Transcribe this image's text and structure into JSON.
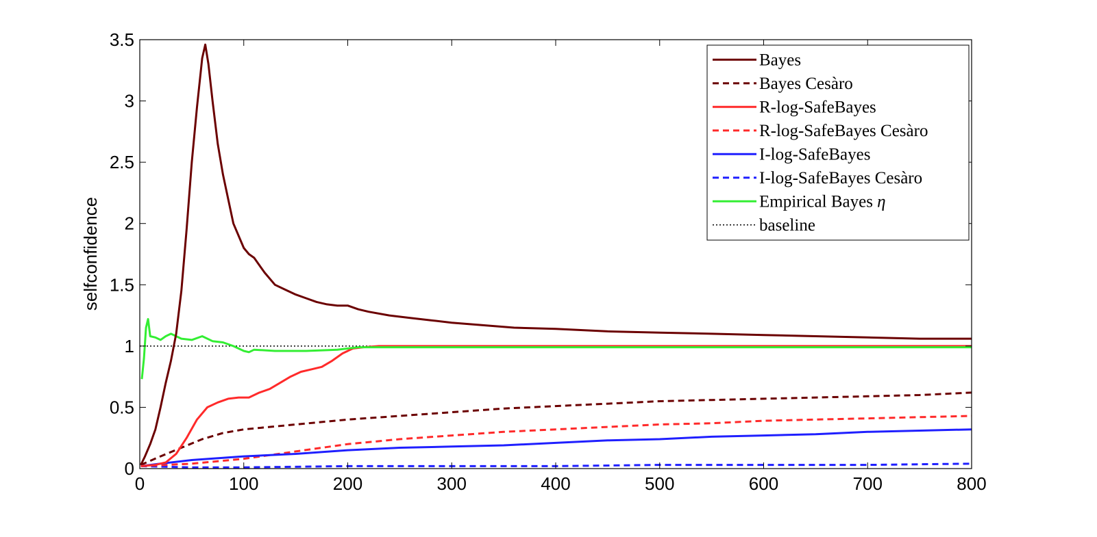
{
  "chart_data": {
    "type": "line",
    "title": "",
    "xlabel": "",
    "ylabel": "selfconfidence",
    "xlim": [
      0,
      800
    ],
    "ylim": [
      0,
      3.5
    ],
    "xticks": [
      "0",
      "100",
      "200",
      "300",
      "400",
      "500",
      "600",
      "700",
      "800"
    ],
    "yticks": [
      "0",
      "0.5",
      "1",
      "1.5",
      "2",
      "2.5",
      "3",
      "3.5"
    ],
    "grid": false,
    "legend_position": "top-right",
    "series": [
      {
        "name": "Bayes",
        "color": "#6b0000",
        "dash": "solid",
        "points": [
          [
            1,
            0.03
          ],
          [
            5,
            0.1
          ],
          [
            10,
            0.2
          ],
          [
            15,
            0.32
          ],
          [
            20,
            0.5
          ],
          [
            25,
            0.7
          ],
          [
            30,
            0.88
          ],
          [
            35,
            1.1
          ],
          [
            40,
            1.45
          ],
          [
            45,
            1.95
          ],
          [
            50,
            2.5
          ],
          [
            55,
            2.95
          ],
          [
            60,
            3.35
          ],
          [
            63,
            3.46
          ],
          [
            66,
            3.3
          ],
          [
            70,
            3.0
          ],
          [
            75,
            2.65
          ],
          [
            80,
            2.4
          ],
          [
            85,
            2.2
          ],
          [
            90,
            2.0
          ],
          [
            100,
            1.8
          ],
          [
            105,
            1.75
          ],
          [
            110,
            1.72
          ],
          [
            120,
            1.6
          ],
          [
            130,
            1.5
          ],
          [
            140,
            1.46
          ],
          [
            150,
            1.42
          ],
          [
            160,
            1.39
          ],
          [
            170,
            1.36
          ],
          [
            180,
            1.34
          ],
          [
            190,
            1.33
          ],
          [
            200,
            1.33
          ],
          [
            210,
            1.3
          ],
          [
            220,
            1.28
          ],
          [
            240,
            1.25
          ],
          [
            260,
            1.23
          ],
          [
            280,
            1.21
          ],
          [
            300,
            1.19
          ],
          [
            330,
            1.17
          ],
          [
            360,
            1.15
          ],
          [
            400,
            1.14
          ],
          [
            450,
            1.12
          ],
          [
            500,
            1.11
          ],
          [
            550,
            1.1
          ],
          [
            600,
            1.09
          ],
          [
            650,
            1.08
          ],
          [
            700,
            1.07
          ],
          [
            750,
            1.06
          ],
          [
            800,
            1.06
          ]
        ]
      },
      {
        "name": "Bayes Cesàro",
        "color": "#6b0000",
        "dash": "dashed",
        "points": [
          [
            1,
            0.03
          ],
          [
            20,
            0.1
          ],
          [
            40,
            0.17
          ],
          [
            60,
            0.24
          ],
          [
            80,
            0.29
          ],
          [
            100,
            0.32
          ],
          [
            150,
            0.36
          ],
          [
            200,
            0.4
          ],
          [
            250,
            0.43
          ],
          [
            300,
            0.46
          ],
          [
            350,
            0.49
          ],
          [
            400,
            0.51
          ],
          [
            450,
            0.53
          ],
          [
            500,
            0.55
          ],
          [
            550,
            0.56
          ],
          [
            600,
            0.57
          ],
          [
            650,
            0.58
          ],
          [
            700,
            0.59
          ],
          [
            750,
            0.6
          ],
          [
            800,
            0.62
          ]
        ]
      },
      {
        "name": "R-log-SafeBayes",
        "color": "#ff2a2a",
        "dash": "solid",
        "points": [
          [
            1,
            0.02
          ],
          [
            15,
            0.03
          ],
          [
            25,
            0.05
          ],
          [
            35,
            0.12
          ],
          [
            45,
            0.25
          ],
          [
            55,
            0.4
          ],
          [
            65,
            0.5
          ],
          [
            75,
            0.54
          ],
          [
            85,
            0.57
          ],
          [
            95,
            0.58
          ],
          [
            105,
            0.58
          ],
          [
            115,
            0.62
          ],
          [
            125,
            0.65
          ],
          [
            135,
            0.7
          ],
          [
            145,
            0.75
          ],
          [
            155,
            0.79
          ],
          [
            165,
            0.81
          ],
          [
            175,
            0.83
          ],
          [
            185,
            0.88
          ],
          [
            195,
            0.94
          ],
          [
            205,
            0.98
          ],
          [
            215,
            0.99
          ],
          [
            230,
            1.0
          ],
          [
            260,
            1.0
          ],
          [
            300,
            1.0
          ],
          [
            400,
            1.0
          ],
          [
            500,
            1.0
          ],
          [
            600,
            1.0
          ],
          [
            700,
            1.0
          ],
          [
            800,
            1.0
          ]
        ]
      },
      {
        "name": "R-log-SafeBayes Cesàro",
        "color": "#ff2a2a",
        "dash": "dashed",
        "points": [
          [
            1,
            0.02
          ],
          [
            50,
            0.04
          ],
          [
            100,
            0.08
          ],
          [
            150,
            0.14
          ],
          [
            200,
            0.2
          ],
          [
            250,
            0.24
          ],
          [
            300,
            0.27
          ],
          [
            350,
            0.3
          ],
          [
            400,
            0.32
          ],
          [
            450,
            0.34
          ],
          [
            500,
            0.36
          ],
          [
            550,
            0.37
          ],
          [
            600,
            0.39
          ],
          [
            650,
            0.4
          ],
          [
            700,
            0.41
          ],
          [
            750,
            0.42
          ],
          [
            800,
            0.43
          ]
        ]
      },
      {
        "name": "I-log-SafeBayes",
        "color": "#1f1fff",
        "dash": "solid",
        "points": [
          [
            1,
            0.02
          ],
          [
            20,
            0.04
          ],
          [
            50,
            0.07
          ],
          [
            100,
            0.1
          ],
          [
            150,
            0.12
          ],
          [
            200,
            0.15
          ],
          [
            250,
            0.17
          ],
          [
            300,
            0.18
          ],
          [
            350,
            0.19
          ],
          [
            400,
            0.21
          ],
          [
            450,
            0.23
          ],
          [
            500,
            0.24
          ],
          [
            550,
            0.26
          ],
          [
            600,
            0.27
          ],
          [
            650,
            0.28
          ],
          [
            700,
            0.3
          ],
          [
            750,
            0.31
          ],
          [
            800,
            0.32
          ]
        ]
      },
      {
        "name": "I-log-SafeBayes Cesàro",
        "color": "#1f1fff",
        "dash": "dashed",
        "points": [
          [
            1,
            0.02
          ],
          [
            50,
            0.01
          ],
          [
            100,
            0.01
          ],
          [
            200,
            0.02
          ],
          [
            300,
            0.02
          ],
          [
            400,
            0.02
          ],
          [
            500,
            0.03
          ],
          [
            600,
            0.03
          ],
          [
            700,
            0.03
          ],
          [
            800,
            0.04
          ]
        ]
      },
      {
        "name": "Empirical Bayes η",
        "color": "#33ee33",
        "dash": "solid",
        "points": [
          [
            2,
            0.73
          ],
          [
            4,
            0.9
          ],
          [
            6,
            1.15
          ],
          [
            8,
            1.22
          ],
          [
            10,
            1.08
          ],
          [
            15,
            1.07
          ],
          [
            20,
            1.05
          ],
          [
            25,
            1.08
          ],
          [
            30,
            1.1
          ],
          [
            40,
            1.06
          ],
          [
            50,
            1.05
          ],
          [
            60,
            1.08
          ],
          [
            70,
            1.04
          ],
          [
            80,
            1.03
          ],
          [
            90,
            1.0
          ],
          [
            100,
            0.96
          ],
          [
            105,
            0.95
          ],
          [
            110,
            0.97
          ],
          [
            130,
            0.96
          ],
          [
            160,
            0.96
          ],
          [
            190,
            0.97
          ],
          [
            210,
            0.99
          ],
          [
            250,
            0.99
          ],
          [
            300,
            0.99
          ],
          [
            400,
            0.99
          ],
          [
            500,
            0.99
          ],
          [
            600,
            0.99
          ],
          [
            700,
            0.99
          ],
          [
            800,
            0.99
          ]
        ]
      },
      {
        "name": "baseline",
        "color": "#000000",
        "dash": "dotted",
        "points": [
          [
            0,
            1
          ],
          [
            800,
            1
          ]
        ]
      }
    ]
  }
}
